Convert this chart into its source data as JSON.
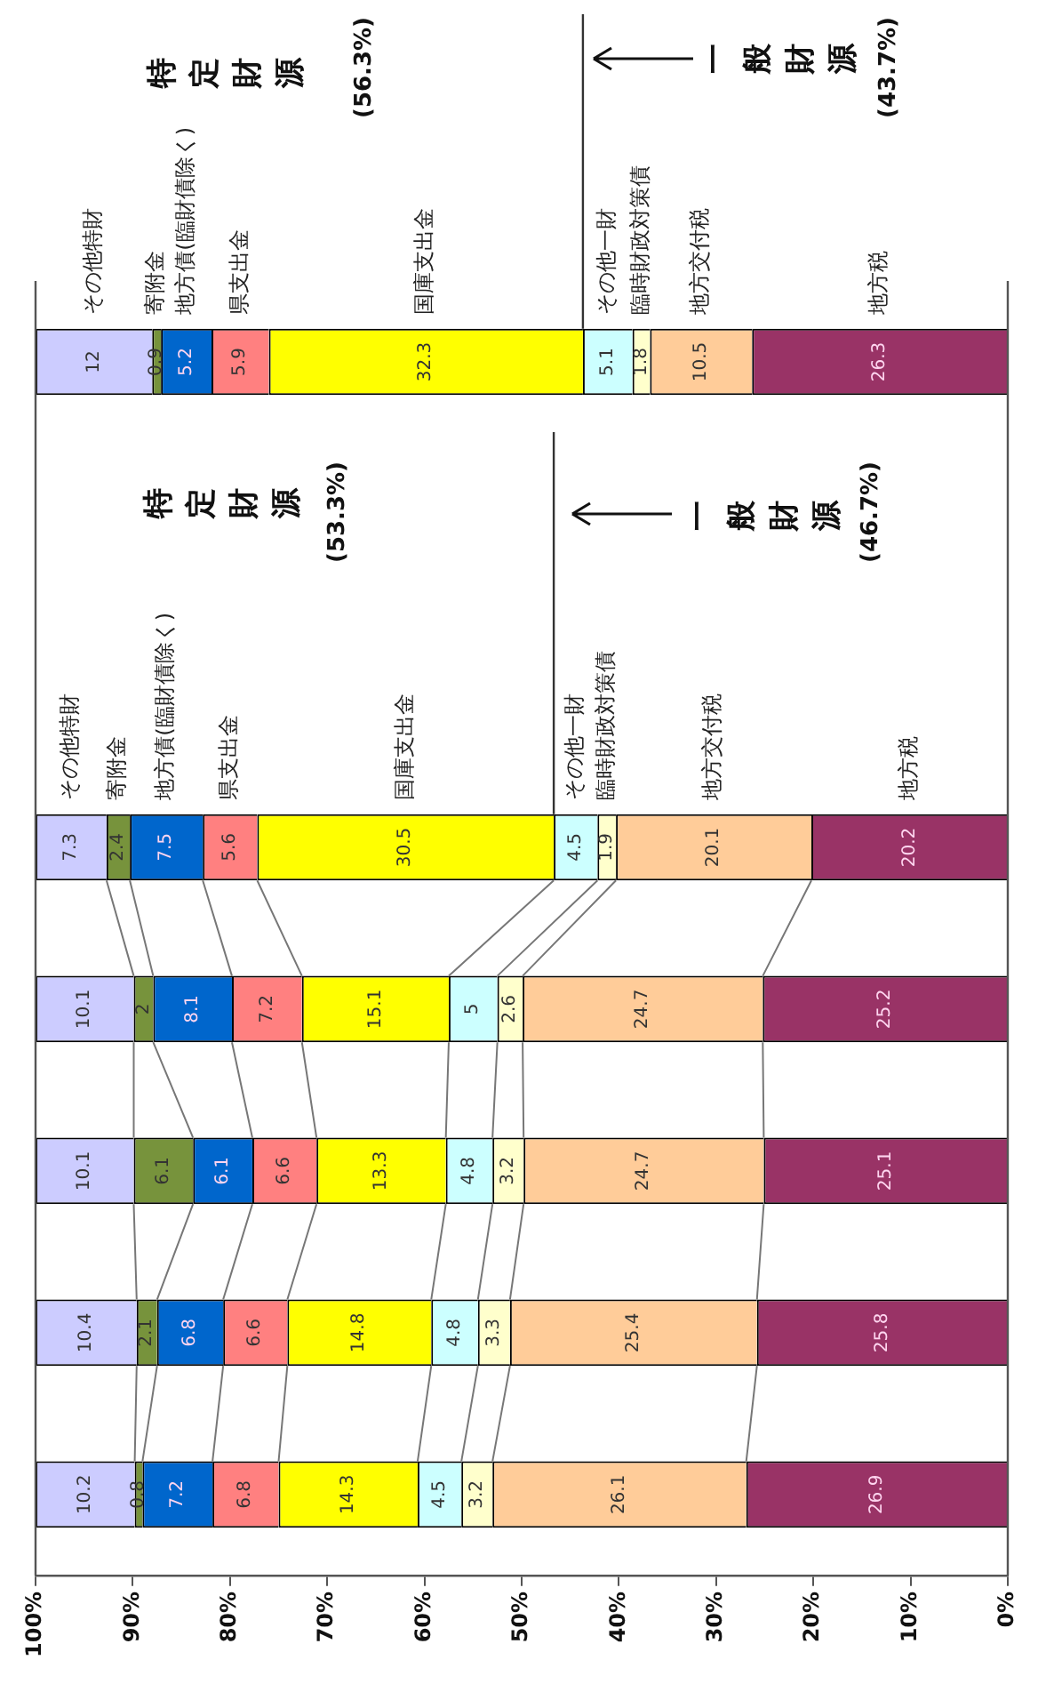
{
  "chart_data": {
    "type": "bar",
    "orientation": "horizontal",
    "stacked": true,
    "data_labels": true,
    "tick_labels": "x",
    "categories": [
      null,
      null,
      null,
      null,
      null,
      null,
      null,
      null
    ],
    "series": [
      {
        "name": "地方税",
        "color": "#993366",
        "values": [
          26.3,
          null,
          null,
          20.2,
          25.2,
          25.1,
          25.8,
          26.9
        ]
      },
      {
        "name": "地方交付税",
        "color": "#ffcc99",
        "values": [
          10.5,
          null,
          null,
          20.1,
          24.7,
          24.7,
          25.4,
          26.1
        ]
      },
      {
        "name": "臨時財政対策債",
        "color": "#ffffcc",
        "values": [
          1.8,
          null,
          null,
          1.9,
          2.6,
          3.2,
          3.3,
          3.2
        ]
      },
      {
        "name": "その他一財",
        "color": "#ccffff",
        "values": [
          5.1,
          null,
          null,
          4.5,
          5.0,
          4.8,
          4.8,
          4.5
        ]
      },
      {
        "name": "国庫支出金",
        "color": "#ffff00",
        "values": [
          32.3,
          null,
          null,
          30.5,
          15.1,
          13.3,
          14.8,
          14.3
        ]
      },
      {
        "name": "県支出金",
        "color": "#ff8080",
        "values": [
          5.9,
          null,
          null,
          5.6,
          7.2,
          6.6,
          6.6,
          6.8
        ]
      },
      {
        "name": "地方債(臨財債除く)",
        "color": "#0066cc",
        "values": [
          5.2,
          null,
          null,
          7.5,
          8.1,
          6.1,
          6.8,
          7.2
        ]
      },
      {
        "name": "寄附金",
        "color": "#77933c",
        "values": [
          0.9,
          null,
          null,
          2.4,
          2.0,
          6.1,
          2.1,
          0.8
        ]
      },
      {
        "name": "その他特財",
        "color": "#ccccff",
        "values": [
          12.0,
          null,
          null,
          7.3,
          10.1,
          10.1,
          10.4,
          10.2
        ]
      }
    ],
    "xlim": [
      100,
      0
    ],
    "xticks": [
      {
        "value": 0,
        "label": "0%"
      },
      {
        "value": 10,
        "label": "10%"
      },
      {
        "value": 20,
        "label": "20%"
      },
      {
        "value": 30,
        "label": "30%"
      },
      {
        "value": 40,
        "label": "40%"
      },
      {
        "value": 50,
        "label": "50%"
      },
      {
        "value": 60,
        "label": "60%"
      },
      {
        "value": 70,
        "label": "70%"
      },
      {
        "value": 80,
        "label": "80%"
      },
      {
        "value": 90,
        "label": "90%"
      },
      {
        "value": 100,
        "label": "100%"
      }
    ],
    "annotations": [
      "特定財源",
      "(56.3%)",
      "一般財源",
      "(43.7%)",
      "特定財源",
      "(53.3%)",
      "一般財源",
      "(46.7%)"
    ]
  }
}
